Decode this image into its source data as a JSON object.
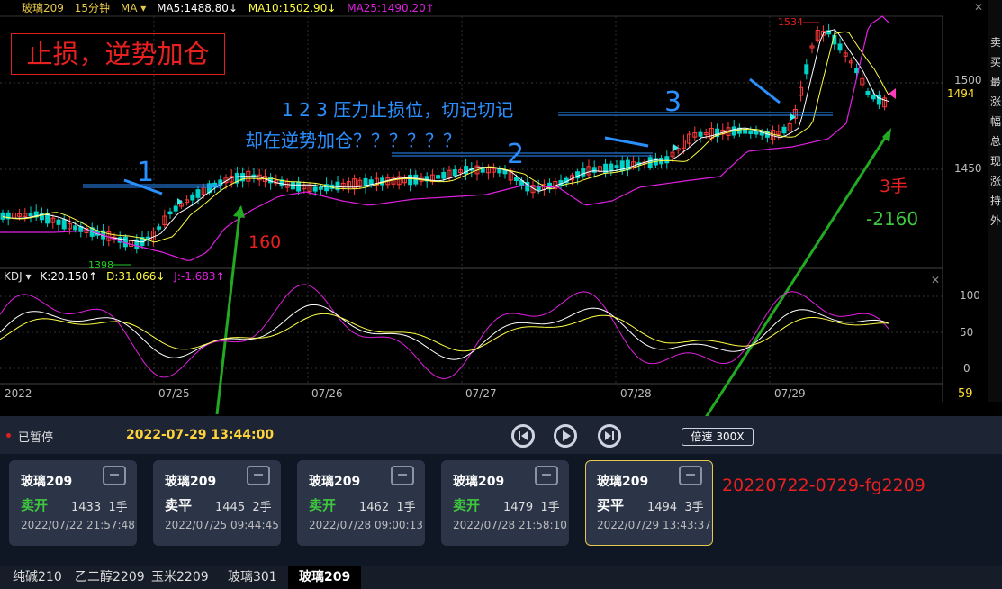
{
  "header": {
    "symbol": "玻璃209",
    "period": "15分钟",
    "ma_label": "MA ▾",
    "ma5": "MA5:1488.80↓",
    "ma10": "MA10:1502.90↓",
    "ma25": "MA25:1490.20↑"
  },
  "price_axis": {
    "p1500": "1500",
    "p1494": "1494",
    "p1450": "1450"
  },
  "kdj_axis": {
    "v100": "100",
    "v50": "50",
    "v0": "0",
    "v59": "59"
  },
  "kdj_header": {
    "name": "KDJ ▾",
    "k": "K:20.150↑",
    "d": "D:31.066↓",
    "j": "J:-1.683↑"
  },
  "dates": [
    "2022",
    "07/25",
    "07/26",
    "07/27",
    "07/28",
    "07/29"
  ],
  "markers": {
    "high": "1534",
    "low": "1398"
  },
  "annotations": {
    "title_box": "止损，逆势加仓",
    "pressure_note": "1 2 3 压力止损位，切记切记",
    "question_note": "却在逆势加仓？？？？？？",
    "n1": "1",
    "n2": "2",
    "n3": "3",
    "profit": "160",
    "lots": "3手",
    "loss": "-2160",
    "file_label": "20220722-0729-fg2209"
  },
  "right_panel": [
    "卖",
    "买",
    "最",
    "涨",
    "幅",
    "总",
    "现",
    "涨",
    "持",
    "外"
  ],
  "controls": {
    "status": "已暂停",
    "datetime": "2022-07-29 13:44:00",
    "speed": "倍速 300X"
  },
  "trades": [
    {
      "symbol": "玻璃209",
      "action": "卖开",
      "price": "1433",
      "qty": "1手",
      "time": "2022/07/22 21:57:48",
      "color": "#3ec93e"
    },
    {
      "symbol": "玻璃209",
      "action": "卖平",
      "price": "1445",
      "qty": "2手",
      "time": "2022/07/25 09:44:45",
      "color": "#ffffff"
    },
    {
      "symbol": "玻璃209",
      "action": "卖开",
      "price": "1462",
      "qty": "1手",
      "time": "2022/07/28 09:00:13",
      "color": "#3ec93e"
    },
    {
      "symbol": "玻璃209",
      "action": "卖开",
      "price": "1479",
      "qty": "1手",
      "time": "2022/07/28 21:58:10",
      "color": "#3ec93e"
    },
    {
      "symbol": "玻璃209",
      "action": "买平",
      "price": "1494",
      "qty": "3手",
      "time": "2022/07/29 13:43:37",
      "color": "#ffffff"
    }
  ],
  "tabs": [
    "纯碱210",
    "乙二醇2209",
    "玉米2209",
    "玻璃301",
    "玻璃209"
  ],
  "colors": {
    "up": "#ff3b3b",
    "down": "#00d2c8",
    "ma5": "#ffffff",
    "ma10": "#ffff44",
    "ma25": "#e020e0",
    "note": "#2a8fff",
    "arrow": "#22aa22"
  }
}
